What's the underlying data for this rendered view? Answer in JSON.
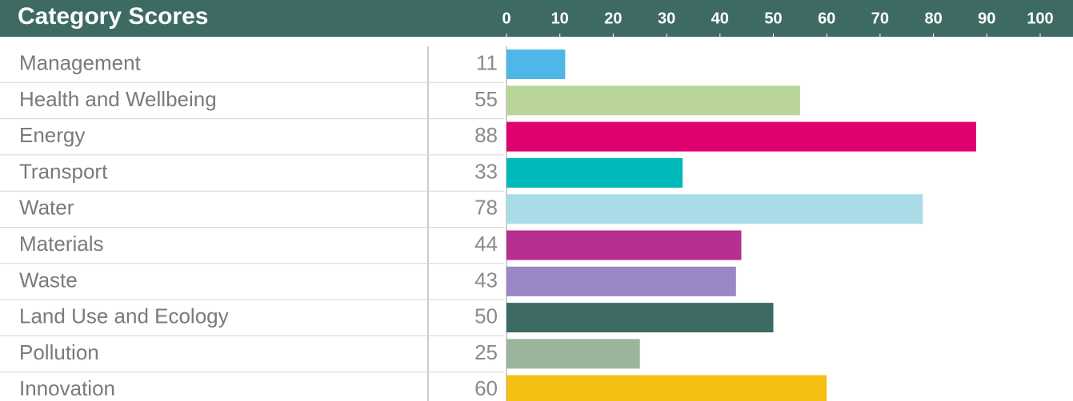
{
  "chart_data": {
    "type": "bar",
    "orientation": "horizontal",
    "title": "Category Scores",
    "categories": [
      "Management",
      "Health and Wellbeing",
      "Energy",
      "Transport",
      "Water",
      "Materials",
      "Waste",
      "Land Use and Ecology",
      "Pollution",
      "Innovation"
    ],
    "values": [
      11,
      55,
      88,
      33,
      78,
      44,
      43,
      50,
      25,
      60
    ],
    "colors": [
      "#4db8e8",
      "#b9d59a",
      "#e0006f",
      "#00b9b9",
      "#a9dce6",
      "#b52f8f",
      "#9b86c6",
      "#3d6b63",
      "#9bb59d",
      "#f6bf13"
    ],
    "xlim": [
      0,
      100
    ],
    "xticks": [
      0,
      10,
      20,
      30,
      40,
      50,
      60,
      70,
      80,
      90,
      100
    ]
  }
}
